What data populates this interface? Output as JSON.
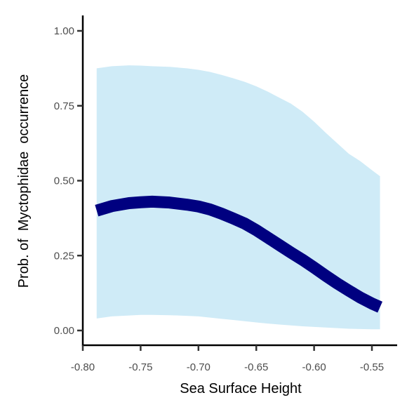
{
  "chart_data": {
    "type": "line",
    "title": "",
    "xlabel": "Sea Surface Height",
    "ylabel": "Prob. of  Myctophidae  occurrence",
    "xlim": [
      -0.8,
      -0.53
    ],
    "ylim": [
      0,
      1.05
    ],
    "x_ticks": [
      -0.8,
      -0.75,
      -0.7,
      -0.65,
      -0.6,
      -0.55
    ],
    "x_tick_labels": [
      "-0.80",
      "-0.75",
      "-0.70",
      "-0.65",
      "-0.60",
      "-0.55"
    ],
    "y_ticks": [
      0,
      0.25,
      0.5,
      0.75,
      1.0
    ],
    "y_tick_labels": [
      "0.00",
      "0.25",
      "0.50",
      "0.75",
      "1.00"
    ],
    "grid": false,
    "legend": "none",
    "colors": {
      "line": "#000080",
      "ribbon": "#cfebf7"
    },
    "x": [
      -0.788,
      -0.775,
      -0.76,
      -0.75,
      -0.74,
      -0.725,
      -0.71,
      -0.7,
      -0.69,
      -0.68,
      -0.67,
      -0.66,
      -0.65,
      -0.64,
      -0.63,
      -0.62,
      -0.61,
      -0.6,
      -0.59,
      -0.58,
      -0.57,
      -0.56,
      -0.55,
      -0.543
    ],
    "series": [
      {
        "values": [
          0.4,
          0.415,
          0.425,
          0.428,
          0.43,
          0.427,
          0.42,
          0.414,
          0.404,
          0.39,
          0.374,
          0.357,
          0.335,
          0.31,
          0.285,
          0.26,
          0.236,
          0.21,
          0.183,
          0.157,
          0.133,
          0.11,
          0.09,
          0.078
        ]
      }
    ],
    "ribbon": {
      "lower": [
        0.04,
        0.047,
        0.05,
        0.052,
        0.052,
        0.051,
        0.049,
        0.047,
        0.043,
        0.039,
        0.035,
        0.031,
        0.027,
        0.023,
        0.02,
        0.017,
        0.014,
        0.012,
        0.01,
        0.008,
        0.006,
        0.005,
        0.004,
        0.004
      ],
      "upper": [
        0.875,
        0.882,
        0.885,
        0.884,
        0.882,
        0.88,
        0.875,
        0.87,
        0.863,
        0.853,
        0.842,
        0.83,
        0.815,
        0.797,
        0.777,
        0.757,
        0.73,
        0.697,
        0.66,
        0.625,
        0.59,
        0.565,
        0.535,
        0.515
      ]
    }
  }
}
